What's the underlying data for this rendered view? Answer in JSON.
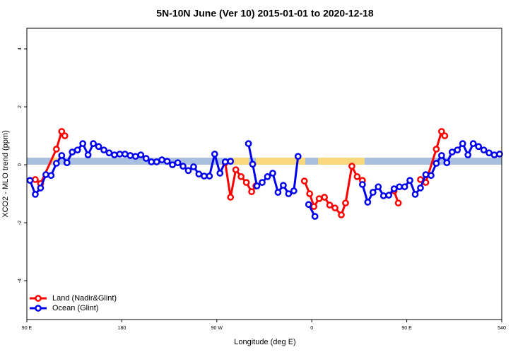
{
  "chart_data": {
    "type": "line",
    "title": "5N-10N June (Ver 10)   2015-01-01 to 2020-12-18",
    "x_label": "Longitude (deg E)",
    "y_label": "XCO2 - MLO trend (ppm)",
    "xlim": [
      90,
      540
    ],
    "ylim": [
      -5.34,
      4.71
    ],
    "xticks": [
      {
        "value": 90,
        "label": "90 E"
      },
      180,
      {
        "value": 270,
        "label": "90 W"
      },
      {
        "value": 360,
        "label": "0"
      },
      {
        "value": 450,
        "label": "90 E"
      },
      540
    ],
    "yticks": [
      -4,
      -2,
      0,
      2,
      4
    ],
    "legend": "bottom-left",
    "series": [
      {
        "name": "Land (Nadir&Glint)",
        "color": "#ff0000",
        "x": [
          98,
          103,
          118,
          123,
          126,
          200,
          278,
          283,
          288,
          293,
          298,
          303,
          307,
          330,
          353,
          358,
          362,
          367,
          372,
          377,
          382,
          388,
          392,
          398,
          403,
          408,
          420,
          438,
          442,
          452,
          463,
          468,
          478,
          483,
          486
        ],
        "values": [
          -0.51,
          -0.65,
          0.54,
          1.15,
          1.0,
          null,
          0.07,
          -1.12,
          -0.17,
          -0.41,
          -0.61,
          -0.93,
          -0.73,
          null,
          -0.56,
          -1.0,
          -1.44,
          -1.17,
          -1.12,
          -1.39,
          -1.49,
          -1.73,
          -1.32,
          -0.05,
          -0.41,
          -0.54,
          null,
          -0.9,
          -1.32,
          null,
          -0.51,
          -0.61,
          0.54,
          1.15,
          1.0
        ]
      },
      {
        "name": "Ocean (Glint)",
        "color": "#0000ee",
        "x": [
          93,
          98,
          103,
          108,
          113,
          118,
          123,
          128,
          133,
          138,
          143,
          148,
          153,
          158,
          163,
          168,
          173,
          178,
          183,
          188,
          193,
          198,
          203,
          208,
          213,
          218,
          223,
          228,
          233,
          238,
          243,
          248,
          253,
          258,
          263,
          268,
          273,
          278,
          283,
          290,
          300,
          304,
          308,
          313,
          318,
          323,
          328,
          333,
          338,
          343,
          347,
          352,
          357,
          363,
          385,
          408,
          413,
          418,
          423,
          428,
          433,
          438,
          443,
          448,
          453,
          458,
          463,
          468,
          473,
          478,
          483,
          488,
          493,
          498,
          503,
          508,
          513,
          518,
          523,
          528,
          533,
          538
        ],
        "values": [
          -0.54,
          -1.02,
          -0.8,
          -0.34,
          -0.37,
          0.05,
          0.32,
          0.07,
          0.44,
          0.51,
          0.73,
          0.34,
          0.73,
          0.63,
          0.51,
          0.41,
          0.34,
          0.37,
          0.37,
          0.32,
          0.29,
          0.34,
          0.22,
          0.1,
          0.1,
          0.17,
          0.12,
          0,
          0.07,
          -0.05,
          -0.2,
          -0.07,
          -0.32,
          -0.39,
          -0.39,
          0.37,
          -0.29,
          0.1,
          0.12,
          null,
          0.73,
          0.02,
          -0.73,
          -0.61,
          -0.41,
          -0.29,
          -0.95,
          -0.71,
          -1.0,
          -0.9,
          0.29,
          null,
          -1.37,
          -1.78,
          null,
          -0.68,
          -1.29,
          -0.95,
          -0.76,
          -1.07,
          -1.05,
          -0.83,
          -0.76,
          -0.76,
          -0.54,
          -1.02,
          -0.8,
          -0.34,
          -0.37,
          0.05,
          0.32,
          0.07,
          0.44,
          0.51,
          0.73,
          0.34,
          0.73,
          0.63,
          0.51,
          0.41,
          0.34,
          0.37
        ]
      }
    ]
  }
}
